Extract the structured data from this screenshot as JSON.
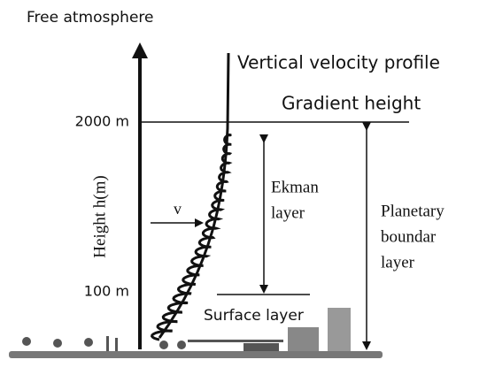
{
  "free_atmosphere": "Free atmosphere",
  "profile_label": "Vertical velocity profile",
  "gradient_height": "Gradient height",
  "height_2000": "2000 m",
  "height_100": "100 m",
  "axis_label": "Height h(m)",
  "velocity_label": "v",
  "ekman_layer": [
    "Ekman",
    "layer"
  ],
  "planetary_layer": [
    "Planetary",
    "boundar",
    "layer"
  ],
  "surface_layer": "Surface layer"
}
